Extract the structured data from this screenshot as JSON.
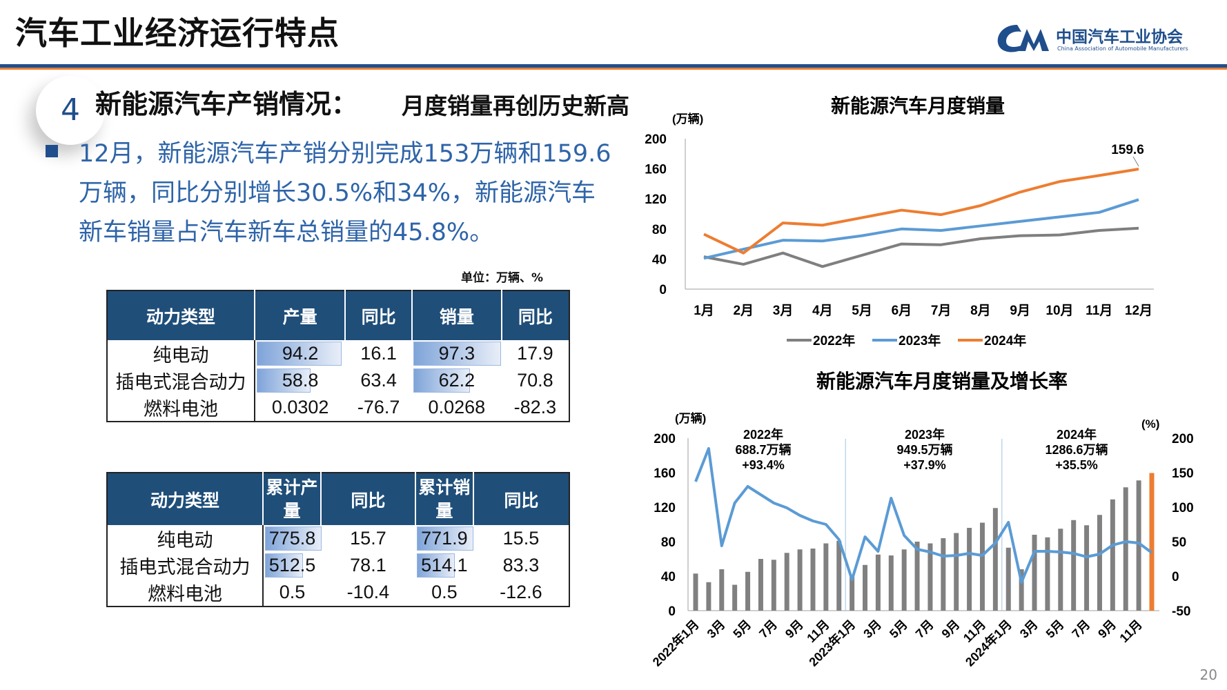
{
  "header": {
    "title": "汽车工业经济运行特点",
    "logo_name": "中国汽车工业协会",
    "logo_en": "China Association of Automobile Manufacturers"
  },
  "section": {
    "number": "4",
    "title": "新能源汽车产销情况：",
    "subtitle": "月度销量再创历史新高"
  },
  "summary": "12月，新能源汽车产销分别完成153万辆和159.6万辆，同比分别增长30.5%和34%，新能源汽车新车销量占汽车新车总销量的45.8%。",
  "unit_note": "单位：万辆、%",
  "table_monthly": {
    "headers": [
      "动力类型",
      "产量",
      "同比",
      "销量",
      "同比"
    ],
    "rows": [
      {
        "type": "纯电动",
        "prod": "94.2",
        "prod_yoy": "16.1",
        "sales": "97.3",
        "sales_yoy": "17.9"
      },
      {
        "type": "插电式混合动力",
        "prod": "58.8",
        "prod_yoy": "63.4",
        "sales": "62.2",
        "sales_yoy": "70.8"
      },
      {
        "type": "燃料电池",
        "prod": "0.0302",
        "prod_yoy": "-76.7",
        "sales": "0.0268",
        "sales_yoy": "-82.3"
      }
    ]
  },
  "table_cumulative": {
    "headers": [
      "动力类型",
      "累计产量",
      "同比",
      "累计销量",
      "同比"
    ],
    "rows": [
      {
        "type": "纯电动",
        "prod": "775.8",
        "prod_yoy": "15.7",
        "sales": "771.9",
        "sales_yoy": "15.5"
      },
      {
        "type": "插电式混合动力",
        "prod": "512.5",
        "prod_yoy": "78.1",
        "sales": "514.1",
        "sales_yoy": "83.3"
      },
      {
        "type": "燃料电池",
        "prod": "0.5",
        "prod_yoy": "-10.4",
        "sales": "0.5",
        "sales_yoy": "-12.6"
      }
    ]
  },
  "chart_data": [
    {
      "type": "line",
      "title": "新能源汽车月度销量",
      "ylabel": "(万辆)",
      "ylim": [
        0,
        200
      ],
      "yticks": [
        0,
        40,
        80,
        120,
        160,
        200
      ],
      "categories": [
        "1月",
        "2月",
        "3月",
        "4月",
        "5月",
        "6月",
        "7月",
        "8月",
        "9月",
        "10月",
        "11月",
        "12月"
      ],
      "series": [
        {
          "name": "2022年",
          "color": "#7f7f7f",
          "values": [
            43,
            33,
            48,
            30,
            45,
            60,
            59,
            67,
            71,
            72,
            78,
            81
          ]
        },
        {
          "name": "2023年",
          "color": "#5b9bd5",
          "values": [
            41,
            53,
            65,
            64,
            71,
            80,
            78,
            84,
            90,
            96,
            102,
            119
          ]
        },
        {
          "name": "2024年",
          "color": "#ed7d31",
          "values": [
            73,
            48,
            88,
            85,
            95,
            105,
            99,
            111,
            129,
            143,
            151,
            159.6
          ]
        }
      ],
      "annotation": "159.6",
      "legend": "bottom"
    },
    {
      "type": "bar",
      "title": "新能源汽车月度销量及增长率",
      "ylabel_left": "(万辆)",
      "ylabel_right": "(%)",
      "ylim_left": [
        0,
        200
      ],
      "yticks_left": [
        0,
        40,
        80,
        120,
        160,
        200
      ],
      "ylim_right": [
        -50,
        200
      ],
      "yticks_right": [
        -50,
        0,
        50,
        100,
        150,
        200
      ],
      "x_tick_labels": [
        "2022年1月",
        "3月",
        "5月",
        "7月",
        "9月",
        "11月",
        "2023年1月",
        "3月",
        "5月",
        "7月",
        "9月",
        "11月",
        "2024年1月",
        "3月",
        "5月",
        "7月",
        "9月",
        "11月"
      ],
      "bar_values": [
        43,
        33,
        48,
        30,
        45,
        60,
        59,
        67,
        71,
        72,
        78,
        81,
        41,
        53,
        65,
        64,
        71,
        80,
        78,
        84,
        90,
        96,
        102,
        119,
        73,
        48,
        88,
        85,
        95,
        105,
        99,
        111,
        129,
        143,
        151,
        159.6
      ],
      "highlight_last_color": "#ed7d31",
      "growth_line": [
        137,
        185,
        44,
        106,
        130,
        118,
        106,
        99,
        88,
        80,
        75,
        53,
        -5,
        57,
        36,
        113,
        59,
        39,
        35,
        29,
        30,
        33,
        30,
        48,
        78,
        -9,
        36,
        36,
        35,
        33,
        28,
        32,
        45,
        50,
        48,
        34
      ],
      "year_annotations": [
        {
          "year": "2022年",
          "total": "688.7万辆",
          "growth": "+93.4%"
        },
        {
          "year": "2023年",
          "total": "949.5万辆",
          "growth": "+37.9%"
        },
        {
          "year": "2024年",
          "total": "1286.6万辆",
          "growth": "+35.5%"
        }
      ]
    }
  ],
  "page_number": "20"
}
